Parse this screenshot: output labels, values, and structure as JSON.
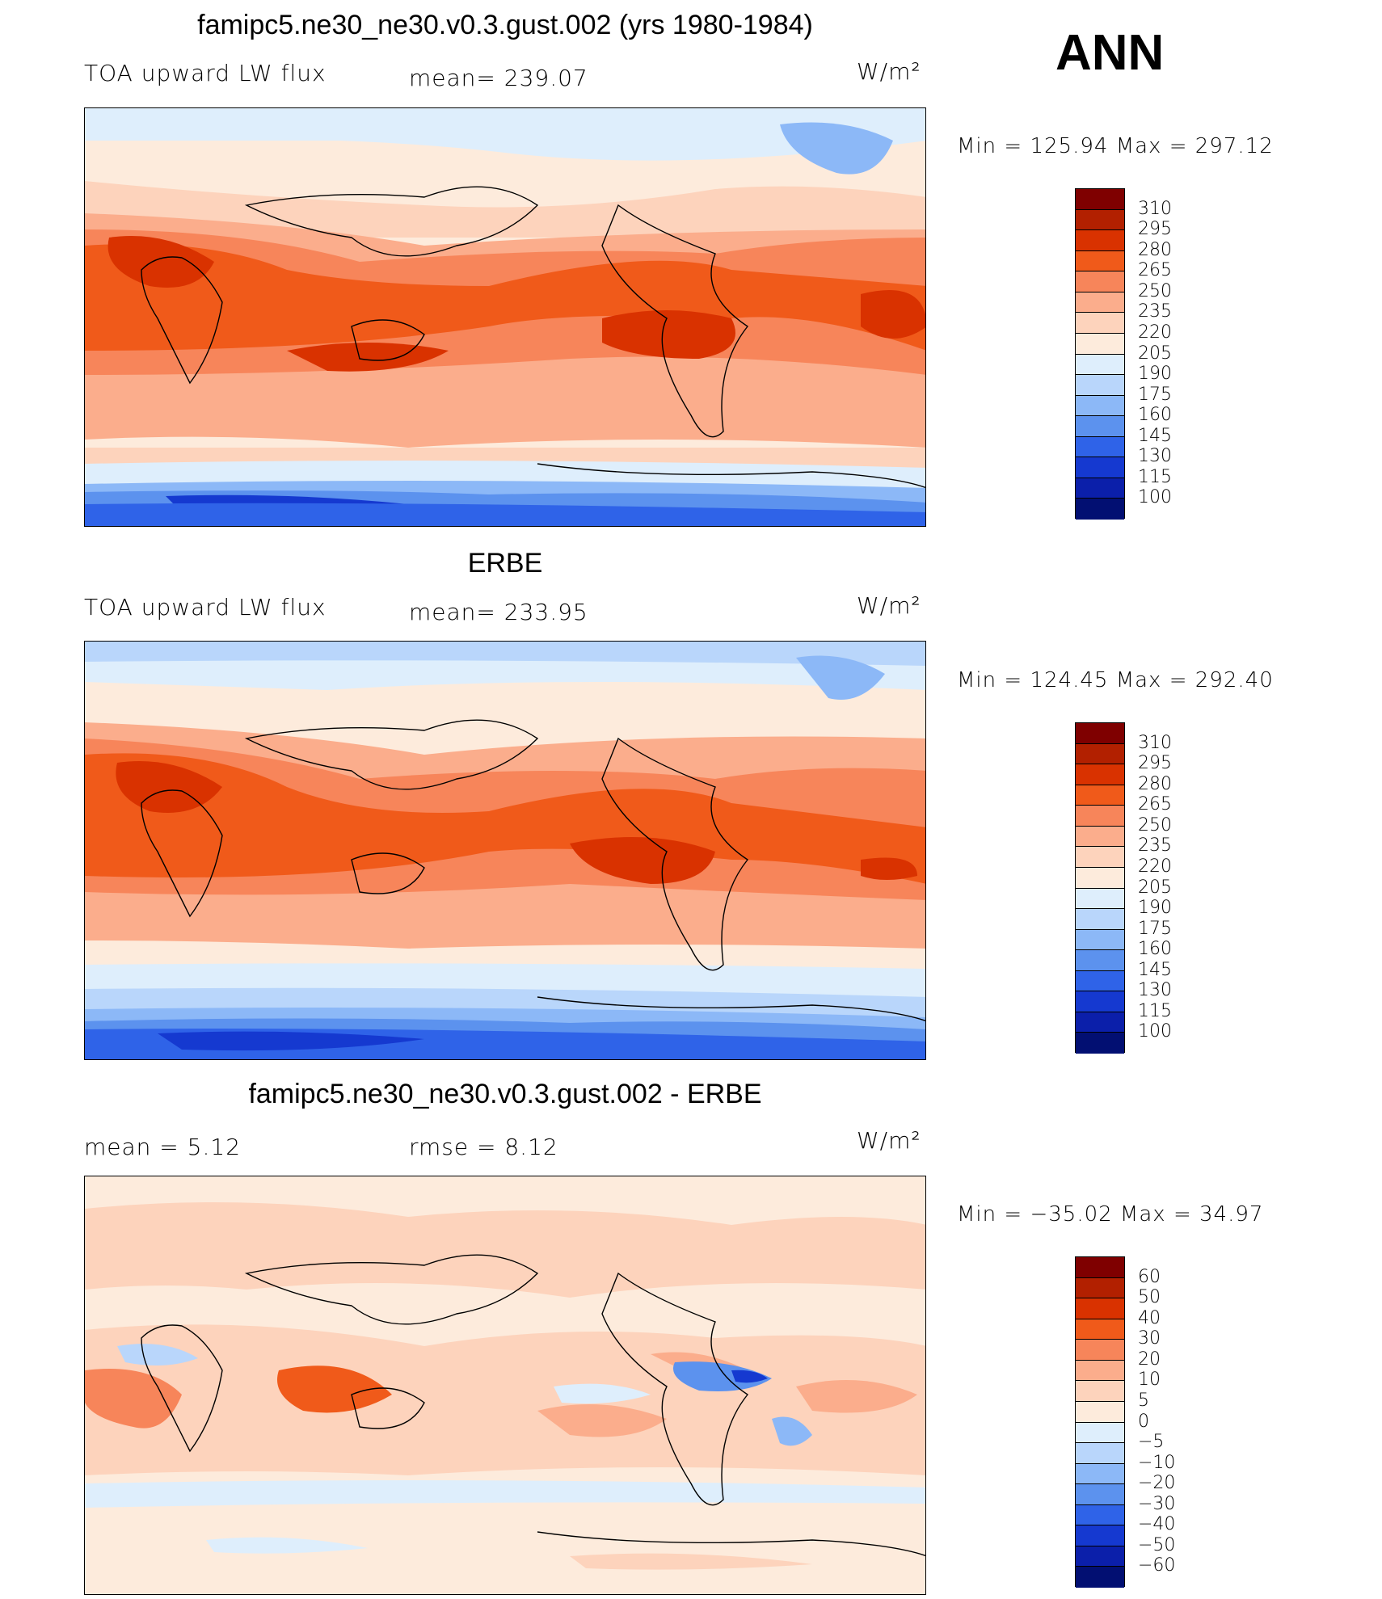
{
  "header": {
    "panel1_title": "famipc5.ne30_ne30.v0.3.gust.002 (yrs 1980-1984)",
    "season": "ANN"
  },
  "panels": [
    {
      "title": "famipc5.ne30_ne30.v0.3.gust.002 (yrs 1980-1984)",
      "left_label": "TOA upward LW flux",
      "mean_label": "mean=  239.07",
      "units": "W/m²",
      "minmax": "Min  =  125.94  Max  =  297.12",
      "colorbar_ticks": [
        "310",
        "295",
        "280",
        "265",
        "250",
        "235",
        "220",
        "205",
        "190",
        "175",
        "160",
        "145",
        "130",
        "115",
        "100"
      ]
    },
    {
      "title": "ERBE",
      "left_label": "TOA upward LW flux",
      "mean_label": "mean=  233.95",
      "units": "W/m²",
      "minmax": "Min  =  124.45  Max  =  292.40",
      "colorbar_ticks": [
        "310",
        "295",
        "280",
        "265",
        "250",
        "235",
        "220",
        "205",
        "190",
        "175",
        "160",
        "145",
        "130",
        "115",
        "100"
      ]
    },
    {
      "title": "famipc5.ne30_ne30.v0.3.gust.002 - ERBE",
      "left_label": "mean  =      5.12",
      "mean_label": "rmse  =      8.12",
      "units": "W/m²",
      "minmax": "Min  =  −35.02  Max  =     34.97",
      "colorbar_ticks": [
        "60",
        "50",
        "40",
        "30",
        "20",
        "10",
        "5",
        "0",
        "−5",
        "−10",
        "−20",
        "−30",
        "−40",
        "−50",
        "−60"
      ]
    }
  ],
  "colors": {
    "palette": [
      "#7f0000",
      "#b22000",
      "#d93200",
      "#f05a1a",
      "#f7855a",
      "#fbad8c",
      "#fdd3bc",
      "#fdebdc",
      "#deeefc",
      "#b9d6fb",
      "#8cb8f7",
      "#5c92ee",
      "#2f63e8",
      "#1539d0",
      "#0b1faa",
      "#020f72"
    ]
  }
}
